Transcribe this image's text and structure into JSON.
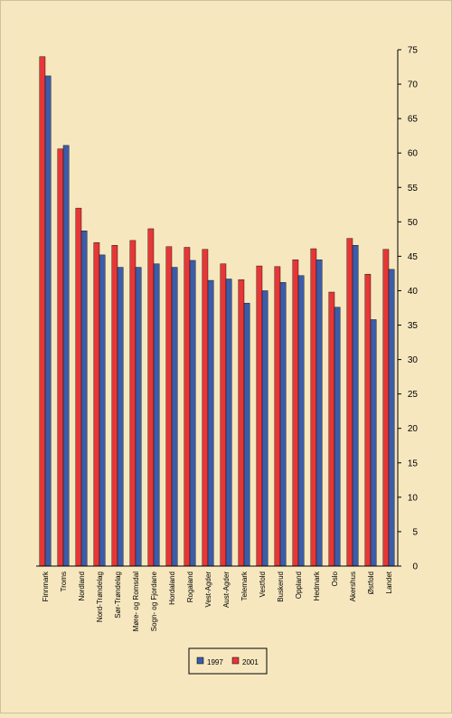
{
  "chart_data": {
    "type": "bar",
    "categories": [
      "Finnmark",
      "Troms",
      "Nordland",
      "Nord-Trøndelag",
      "Sør-Trøndelag",
      "Møre- og Romsdal",
      "Sogn- og Fjordane",
      "Hordaland",
      "Rogaland",
      "Vest-Agder",
      "Aust-Agder",
      "Telemark",
      "Vestfold",
      "Buskerud",
      "Oppland",
      "Hedmark",
      "Oslo",
      "Akershus",
      "Østfold",
      "Landet"
    ],
    "series": [
      {
        "name": "1997",
        "color": "#3b5ca8",
        "values": [
          71.2,
          61.1,
          48.7,
          45.2,
          43.4,
          43.4,
          43.9,
          43.4,
          44.4,
          41.5,
          41.7,
          38.2,
          40.0,
          41.2,
          42.2,
          44.5,
          37.6,
          46.6,
          35.8,
          43.1
        ]
      },
      {
        "name": "2001",
        "color": "#e63636",
        "values": [
          74.0,
          60.6,
          52.0,
          47.0,
          46.6,
          47.3,
          49.0,
          46.4,
          46.3,
          46.0,
          43.9,
          41.6,
          43.6,
          43.5,
          44.5,
          46.1,
          39.8,
          47.6,
          42.4,
          46.0
        ]
      }
    ],
    "ylim": [
      0,
      75
    ],
    "yticks": [
      "0",
      "5",
      "10",
      "15",
      "20",
      "25",
      "30",
      "35",
      "40",
      "45",
      "50",
      "55",
      "60",
      "65",
      "70",
      "75"
    ],
    "grid": false,
    "y_axis_side": "right",
    "legend_position": "bottom"
  }
}
